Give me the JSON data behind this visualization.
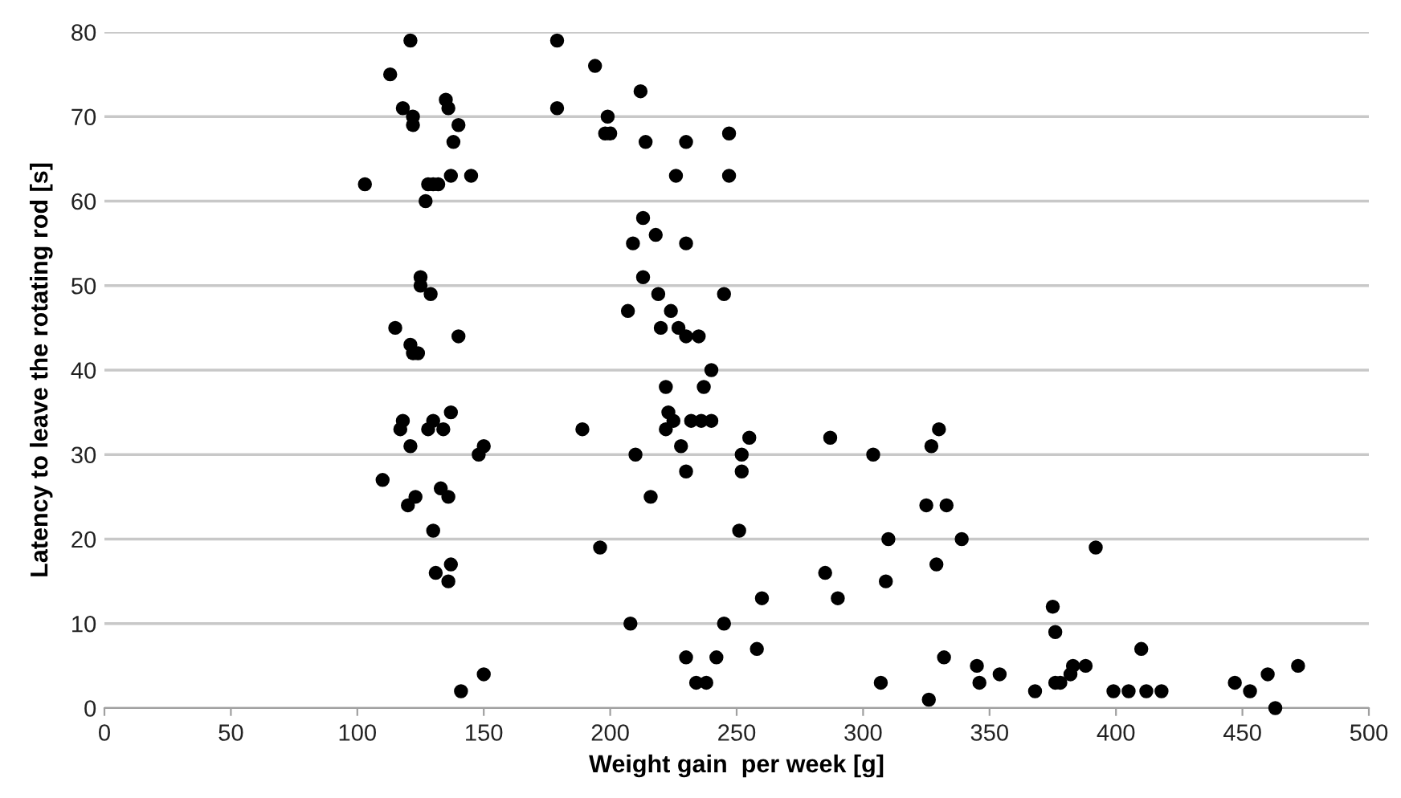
{
  "chart_data": {
    "type": "scatter",
    "xlabel": "Weight gain  per week [g]",
    "ylabel": "Latency to leave the rotating rod [s]",
    "x": [
      103,
      113,
      118,
      121,
      122,
      122,
      135,
      136,
      138,
      140,
      137,
      145,
      128,
      130,
      132,
      127,
      125,
      125,
      129,
      115,
      121,
      122,
      124,
      140,
      117,
      118,
      128,
      130,
      134,
      137,
      121,
      110,
      133,
      136,
      120,
      123,
      130,
      131,
      137,
      136,
      148,
      150,
      141,
      150,
      179,
      179,
      194,
      199,
      198,
      200,
      212,
      214,
      230,
      247,
      226,
      247,
      213,
      213,
      218,
      209,
      230,
      219,
      207,
      220,
      224,
      227,
      230,
      235,
      245,
      240,
      222,
      237,
      223,
      225,
      232,
      236,
      240,
      222,
      189,
      210,
      228,
      230,
      216,
      252,
      252,
      255,
      196,
      251,
      260,
      258,
      208,
      245,
      230,
      242,
      234,
      238,
      287,
      285,
      290,
      304,
      327,
      330,
      333,
      325,
      339,
      310,
      309,
      329,
      307,
      326,
      332,
      345,
      346,
      354,
      368,
      392,
      375,
      376,
      376,
      378,
      382,
      383,
      388,
      399,
      405,
      410,
      412,
      418,
      447,
      453,
      460,
      463,
      472
    ],
    "values": [
      62,
      75,
      71,
      79,
      70,
      69,
      72,
      71,
      67,
      69,
      63,
      63,
      62,
      62,
      62,
      60,
      51,
      50,
      49,
      45,
      43,
      42,
      42,
      44,
      33,
      34,
      33,
      34,
      33,
      35,
      31,
      27,
      26,
      25,
      24,
      25,
      21,
      16,
      17,
      15,
      30,
      31,
      2,
      4,
      79,
      71,
      76,
      70,
      68,
      68,
      73,
      67,
      67,
      68,
      63,
      63,
      58,
      51,
      56,
      55,
      55,
      49,
      47,
      45,
      47,
      45,
      44,
      44,
      49,
      40,
      38,
      38,
      35,
      34,
      34,
      34,
      34,
      33,
      33,
      30,
      31,
      28,
      25,
      28,
      30,
      32,
      19,
      21,
      13,
      7,
      10,
      10,
      6,
      6,
      3,
      3,
      32,
      16,
      13,
      30,
      31,
      33,
      24,
      24,
      20,
      20,
      15,
      17,
      3,
      1,
      6,
      5,
      3,
      4,
      2,
      19,
      12,
      9,
      3,
      3,
      4,
      5,
      5,
      2,
      2,
      7,
      2,
      2,
      3,
      2,
      4,
      0,
      5
    ],
    "color": "#000000",
    "marker": "circle",
    "grid": "y",
    "xlim": [
      0,
      500
    ],
    "xticks": [
      0,
      50,
      100,
      150,
      200,
      250,
      300,
      350,
      400,
      450,
      500
    ],
    "ylim": [
      0,
      80
    ],
    "yticks": [
      0,
      10,
      20,
      30,
      40,
      50,
      60,
      70,
      80
    ]
  }
}
